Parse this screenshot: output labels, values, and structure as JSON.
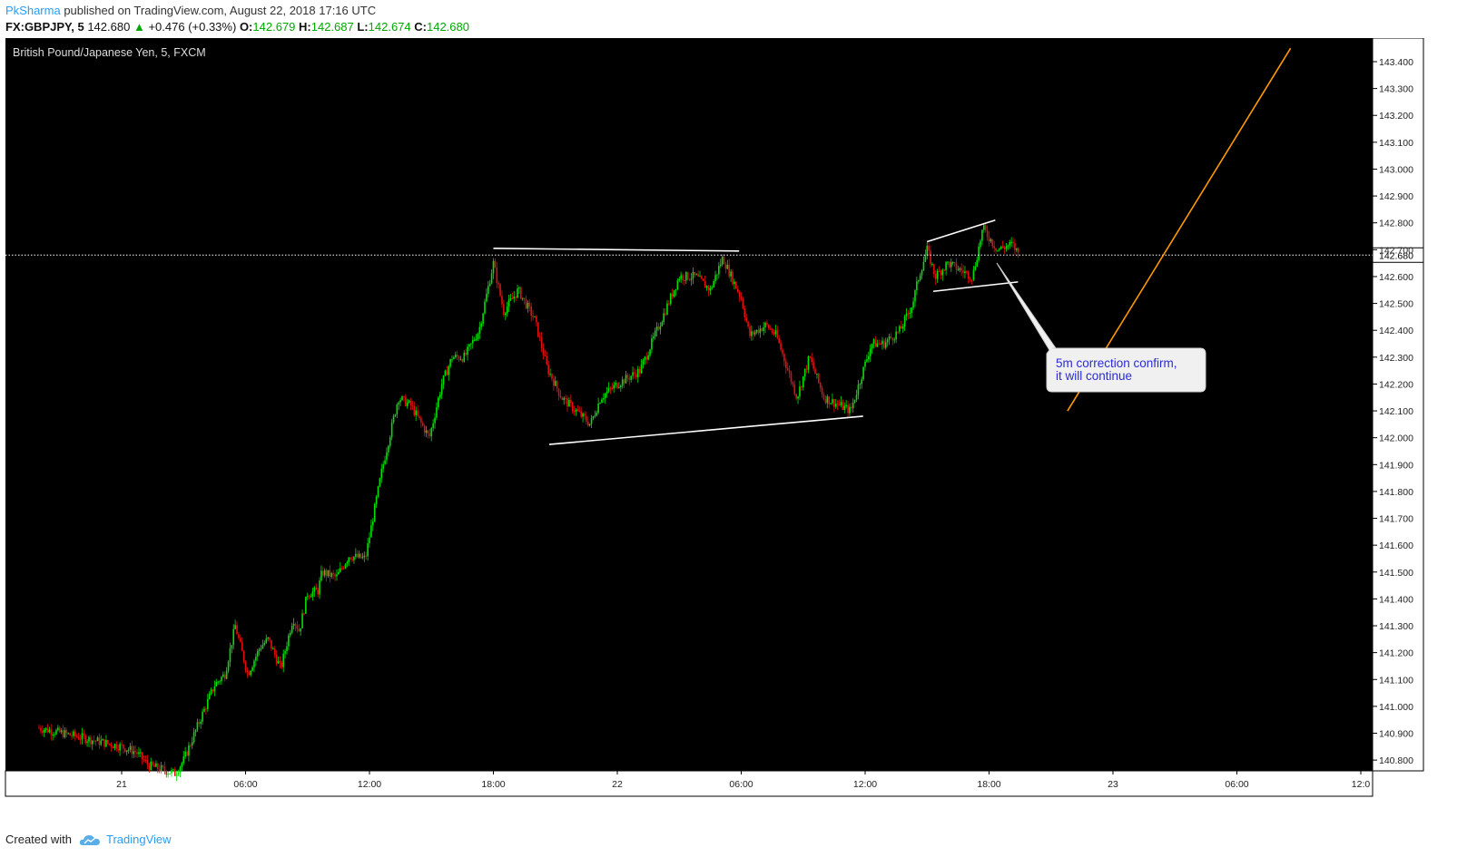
{
  "header": {
    "author": "PkSharma",
    "published": "published on TradingView.com, August 22, 2018 17:16 UTC",
    "symbol": "FX:GBPJPY, 5",
    "last": "142.680",
    "change_arrow": "▲",
    "change": "+0.476 (+0.33%)",
    "o_label": "O:",
    "o_value": "142.679",
    "h_label": "H:",
    "h_value": "142.687",
    "l_label": "L:",
    "l_value": "142.674",
    "c_label": "C:",
    "c_value": "142.680"
  },
  "footer": {
    "created_with": "Created with",
    "brand": "TradingView",
    "logo_icon": "tradingview-cloud-icon"
  },
  "colors": {
    "background": "#000000",
    "up_candle": "#00e000",
    "down_candle": "#e01010",
    "trendline": "#ffffff",
    "projection": "#ff9900",
    "callout_text": "#2b2bd6"
  },
  "chart_data": {
    "type": "candlestick",
    "title": "British Pound/Japanese Yen, 5, FXCM",
    "ylim": [
      140.75,
      143.45
    ],
    "y_ticks": [
      "143.400",
      "143.300",
      "143.200",
      "143.100",
      "143.000",
      "142.900",
      "142.800",
      "142.700",
      "142.600",
      "142.500",
      "142.400",
      "142.300",
      "142.200",
      "142.100",
      "142.000",
      "141.900",
      "141.800",
      "141.700",
      "141.600",
      "141.500",
      "141.400",
      "141.300",
      "141.200",
      "141.100",
      "141.000",
      "140.900",
      "140.800"
    ],
    "x_ticks": [
      "21",
      "06:00",
      "12:00",
      "18:00",
      "22",
      "06:00",
      "12:00",
      "18:00",
      "23",
      "06:00",
      "12:0"
    ],
    "last_price_label": "142.680",
    "last_price": 142.68,
    "price_path": [
      [
        -4,
        140.92
      ],
      [
        0,
        140.85
      ],
      [
        0.7,
        140.83
      ],
      [
        1.3,
        140.78
      ],
      [
        2.6,
        140.75
      ],
      [
        3,
        140.8
      ],
      [
        3.8,
        140.95
      ],
      [
        4.5,
        141.08
      ],
      [
        5,
        141.12
      ],
      [
        5.5,
        141.3
      ],
      [
        6.1,
        141.12
      ],
      [
        6.7,
        141.22
      ],
      [
        7.1,
        141.25
      ],
      [
        7.7,
        141.14
      ],
      [
        8.3,
        141.33
      ],
      [
        8.6,
        141.28
      ],
      [
        9,
        141.42
      ],
      [
        9.5,
        141.43
      ],
      [
        9.7,
        141.5
      ],
      [
        10.4,
        141.48
      ],
      [
        11,
        141.56
      ],
      [
        11.8,
        141.55
      ],
      [
        12.6,
        141.88
      ],
      [
        13.4,
        142.15
      ],
      [
        14,
        142.12
      ],
      [
        14.9,
        142.0
      ],
      [
        15.5,
        142.2
      ],
      [
        16,
        142.3
      ],
      [
        16.6,
        142.3
      ],
      [
        17.3,
        142.4
      ],
      [
        18,
        142.65
      ],
      [
        18.5,
        142.47
      ],
      [
        19.2,
        142.55
      ],
      [
        20,
        142.44
      ],
      [
        20.6,
        142.26
      ],
      [
        21.3,
        142.15
      ],
      [
        22.7,
        142.05
      ],
      [
        23.2,
        142.15
      ],
      [
        24,
        142.2
      ],
      [
        25.1,
        142.25
      ],
      [
        26.2,
        142.45
      ],
      [
        27,
        142.6
      ],
      [
        27.8,
        142.6
      ],
      [
        28.5,
        142.55
      ],
      [
        29.1,
        142.67
      ],
      [
        30,
        142.52
      ],
      [
        30.4,
        142.38
      ],
      [
        31.2,
        142.42
      ],
      [
        31.7,
        142.38
      ],
      [
        32.7,
        142.15
      ],
      [
        33.3,
        142.3
      ],
      [
        34,
        142.15
      ],
      [
        35.3,
        142.1
      ],
      [
        35.7,
        142.2
      ],
      [
        36.3,
        142.35
      ],
      [
        36.9,
        142.35
      ],
      [
        37.7,
        142.4
      ],
      [
        38.3,
        142.5
      ],
      [
        38.6,
        142.6
      ],
      [
        39,
        142.7
      ],
      [
        39.4,
        142.6
      ],
      [
        40,
        142.65
      ],
      [
        41.2,
        142.6
      ],
      [
        41.7,
        142.78
      ],
      [
        42.4,
        142.7
      ],
      [
        43.1,
        142.72
      ],
      [
        43.5,
        142.68
      ]
    ],
    "annotations": {
      "callout_text": "5m correction confirm, it will continue",
      "callout_line1": "5m correction confirm,",
      "callout_line2": "it will continue",
      "resistance_line": [
        [
          18,
          142.705
        ],
        [
          29.9,
          142.695
        ]
      ],
      "support_line": [
        [
          20.7,
          141.975
        ],
        [
          35.9,
          142.08
        ]
      ],
      "flag_top": [
        [
          39,
          142.73
        ],
        [
          42.3,
          142.81
        ]
      ],
      "flag_bottom": [
        [
          39.3,
          142.545
        ],
        [
          43.4,
          142.58
        ]
      ],
      "projection_line": [
        [
          45.8,
          142.1
        ],
        [
          56.6,
          143.45
        ]
      ]
    },
    "grid": false
  }
}
